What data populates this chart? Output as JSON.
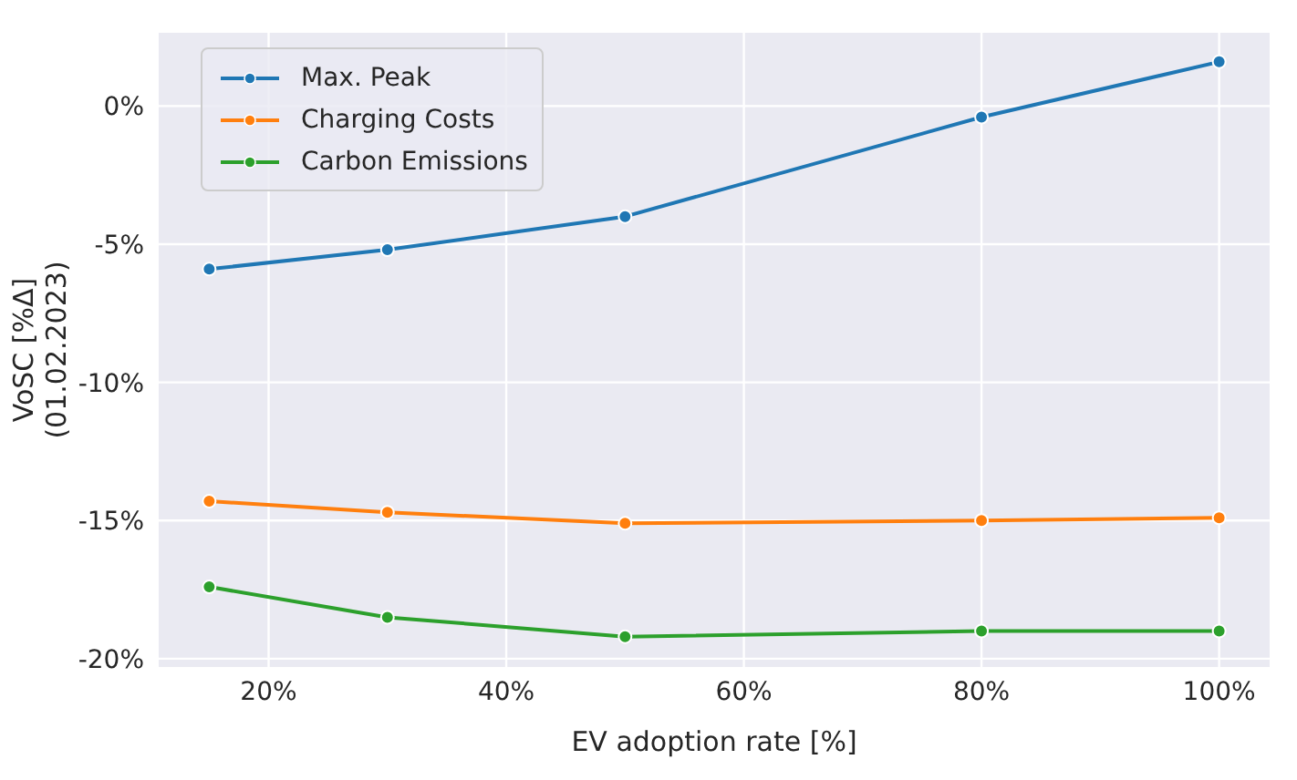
{
  "chart_data": {
    "type": "line",
    "xlabel": "EV adoption rate [%]",
    "ylabel": "VoSC [%Δ]\n(01.02.2023)",
    "x": [
      15,
      30,
      50,
      80,
      100
    ],
    "series": [
      {
        "name": "Max. Peak",
        "color": "#1f77b4",
        "values": [
          -5.9,
          -5.2,
          -4.0,
          -0.4,
          1.6
        ]
      },
      {
        "name": "Charging Costs",
        "color": "#ff7f0e",
        "values": [
          -14.3,
          -14.7,
          -15.1,
          -15.0,
          -14.9
        ]
      },
      {
        "name": "Carbon Emissions",
        "color": "#2ca02c",
        "values": [
          -17.4,
          -18.5,
          -19.2,
          -19.0,
          -19.0
        ]
      }
    ],
    "xlim": [
      10.75,
      104.25
    ],
    "xticks": [
      {
        "value": 20,
        "label": "20%"
      },
      {
        "value": 40,
        "label": "40%"
      },
      {
        "value": 60,
        "label": "60%"
      },
      {
        "value": 80,
        "label": "80%"
      },
      {
        "value": 100,
        "label": "100%"
      }
    ],
    "ylim": [
      -20.3,
      2.65
    ],
    "yticks": [
      {
        "value": -20,
        "label": "-20%"
      },
      {
        "value": -15,
        "label": "-15%"
      },
      {
        "value": -10,
        "label": "-10%"
      },
      {
        "value": -5,
        "label": "-5%"
      },
      {
        "value": 0,
        "label": "0%"
      }
    ],
    "grid": true,
    "legend": "top left",
    "marker": "circle",
    "line_style": "solid"
  }
}
